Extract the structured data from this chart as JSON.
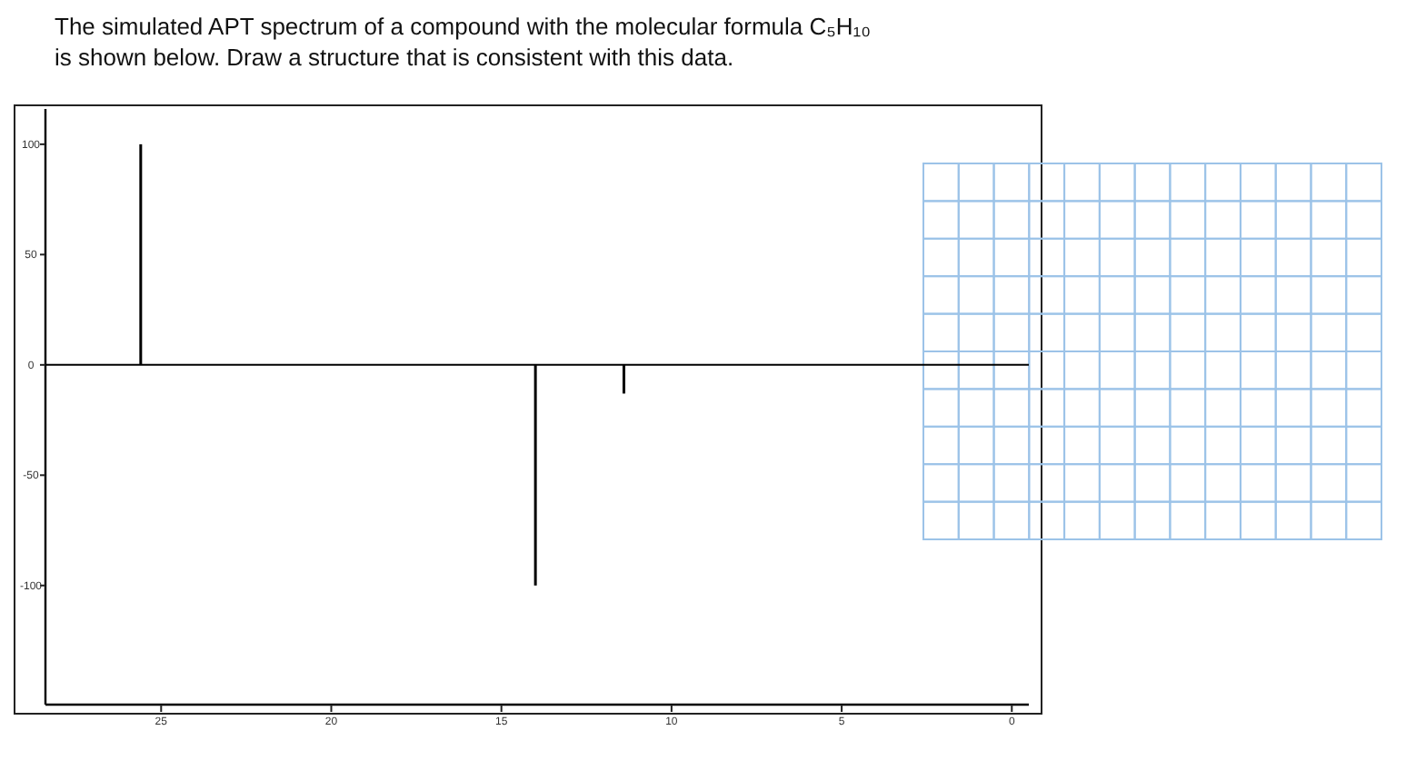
{
  "chart_data": {
    "type": "bar",
    "title": "The simulated APT spectrum of a compound with the molecular formula C₅H₁₀",
    "subtitle": "is shown below. Draw a structure that is consistent with this data.",
    "x": [
      25.6,
      14,
      11.4
    ],
    "values": [
      100,
      -100,
      -13
    ],
    "color": "#000000",
    "xlim": [
      28.4,
      -0.5
    ],
    "xticks": [
      25,
      20,
      15,
      10,
      5,
      0
    ],
    "ylim": [
      -154,
      116
    ],
    "yticks": [
      100,
      50,
      0,
      -50,
      -100
    ],
    "ref_lines": [
      {
        "axis": "y",
        "value": 0,
        "color": "#000000"
      }
    ],
    "grid": false
  }
}
